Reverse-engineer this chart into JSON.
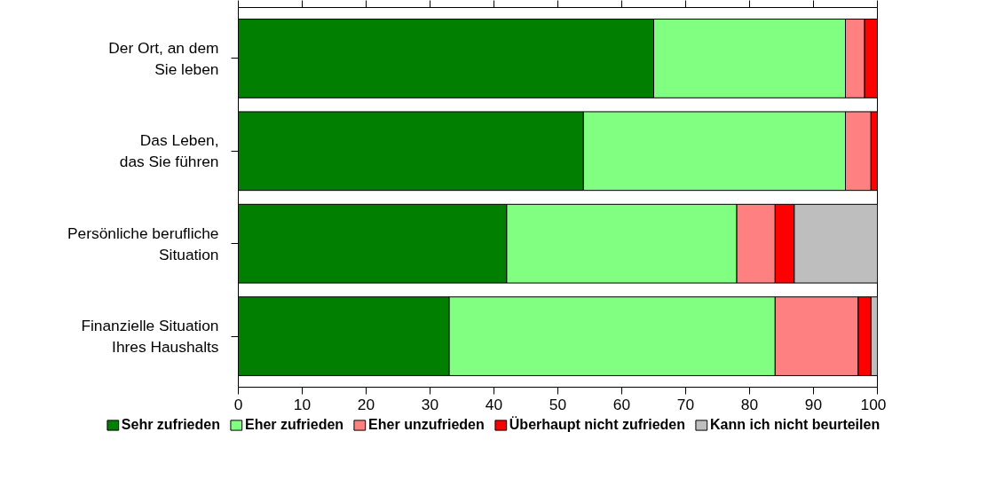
{
  "chart_data": {
    "type": "bar",
    "orientation": "horizontal",
    "stacked": true,
    "categories": [
      "Der Ort, an dem\nSie leben",
      "Das Leben,\ndas Sie führen",
      "Persönliche berufliche\nSituation",
      "Finanzielle Situation\nIhres Haushalts"
    ],
    "series": [
      {
        "name": "Sehr zufrieden",
        "color": "#007f00",
        "values": [
          65,
          54,
          42,
          33
        ]
      },
      {
        "name": "Eher zufrieden",
        "color": "#80ff80",
        "values": [
          30,
          41,
          36,
          51
        ]
      },
      {
        "name": "Eher unzufrieden",
        "color": "#ff8080",
        "values": [
          3,
          4,
          6,
          13
        ]
      },
      {
        "name": "Überhaupt nicht zufrieden",
        "color": "#ff0000",
        "values": [
          2,
          1,
          3,
          2
        ]
      },
      {
        "name": "Kann ich nicht beurteilen",
        "color": "#bebebe",
        "values": [
          null,
          null,
          13,
          1
        ]
      }
    ],
    "xlim": [
      0,
      100
    ],
    "xticks": [
      0,
      10,
      20,
      30,
      40,
      50,
      60,
      70,
      80,
      90,
      100
    ],
    "grid": false,
    "legend": "bottom"
  }
}
